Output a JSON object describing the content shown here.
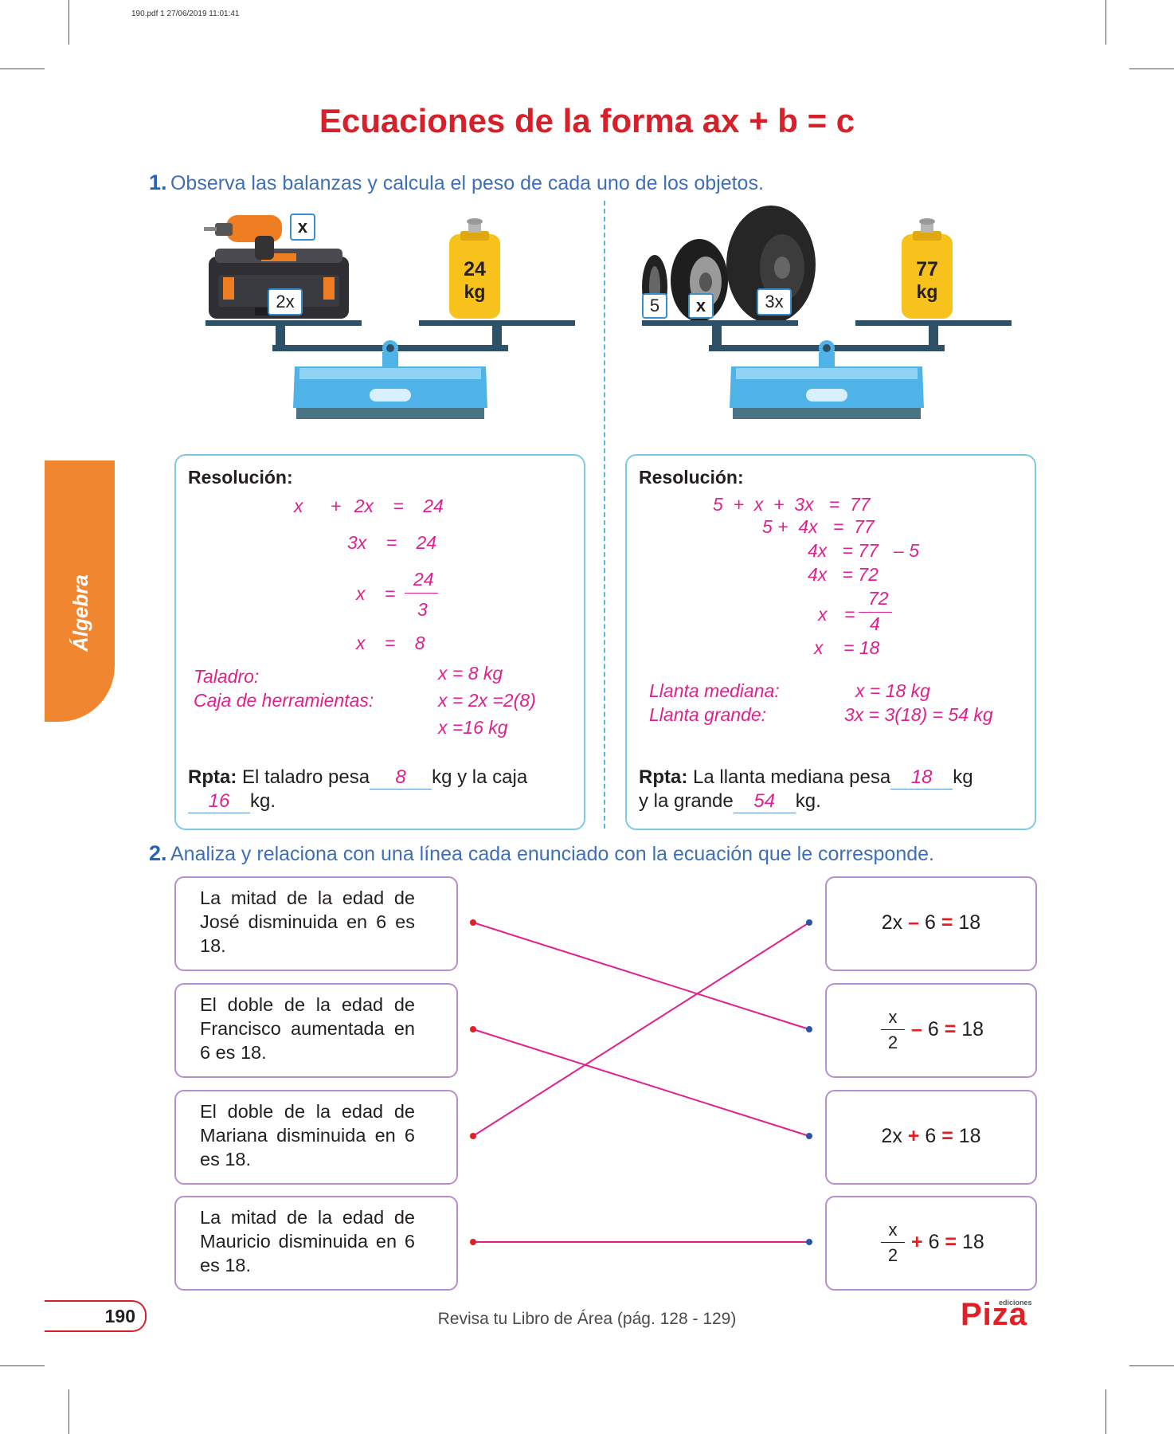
{
  "print_info": "190.pdf   1   27/06/2019   11:01:41",
  "title": "Ecuaciones de la forma ax + b = c",
  "section_tab": "Álgebra",
  "q1": {
    "number": "1.",
    "text": "Observa las balanzas y calcula el peso de cada uno de los objetos.",
    "scale1": {
      "label_x": "x",
      "label_2x": "2x",
      "weight_value": "24",
      "weight_unit": "kg"
    },
    "scale2": {
      "label_5": "5",
      "label_x": "x",
      "label_3x": "3x",
      "weight_value": "77",
      "weight_unit": "kg"
    },
    "box1": {
      "label": "Resolución:",
      "eq1": {
        "a": "x",
        "op": "+",
        "b": "2x",
        "eq": "=",
        "c": "24"
      },
      "eq2": {
        "a": "3x",
        "eq": "=",
        "c": "24"
      },
      "eq3": {
        "a": "x",
        "eq": "=",
        "num": "24",
        "den": "3"
      },
      "eq4": {
        "a": "x",
        "eq": "=",
        "c": "8"
      },
      "taladro_label": "Taladro:",
      "taladro_value": "x = 8 kg",
      "caja_label": "Caja de herramientas:",
      "caja_value1": "x = 2x =2(8)",
      "caja_value2": "x =16 kg",
      "rpta_label": "Rpta:",
      "rpta_text1": "El taladro pesa",
      "rpta_blank1": "8",
      "rpta_text2": "kg y la caja",
      "rpta_blank2": "16",
      "rpta_text3": "kg."
    },
    "box2": {
      "label": "Resolución:",
      "line1": "5  +  x  +  3x   =  77",
      "line2": "5 +  4x   =  77",
      "line3": "4x   = 77   – 5",
      "line4": "4x   = 72",
      "frac_x": "x",
      "frac_eq": "=",
      "frac_num": "72",
      "frac_den": "4",
      "line6": "x    = 18",
      "mediana_label": "Llanta mediana:",
      "mediana_value": "x = 18 kg",
      "grande_label": "Llanta grande:",
      "grande_value": "3x = 3(18) = 54 kg",
      "rpta_label": "Rpta:",
      "rpta_text1": "La llanta mediana pesa",
      "rpta_blank1": "18",
      "rpta_text2": "kg",
      "rpta_text3": "y la grande",
      "rpta_blank2": "54",
      "rpta_text4": "kg."
    }
  },
  "q2": {
    "number": "2.",
    "text": "Analiza y relaciona con una línea cada enunciado con la ecuación que le corresponde.",
    "statements": [
      "La mitad de la edad de José disminuida en 6 es 18.",
      "El doble de la edad de Francisco aumentada en 6 es 18.",
      "El doble de la edad de Mariana disminuida en 6 es 18.",
      "La mitad de la edad de Mauricio disminuida en 6 es 18."
    ],
    "equations": [
      {
        "lhs": "2x",
        "op": "–",
        "b": "6",
        "eq": "=",
        "rhs": "18"
      },
      {
        "num": "x",
        "den": "2",
        "op": "–",
        "b": "6",
        "eq": "=",
        "rhs": "18"
      },
      {
        "lhs": "2x",
        "op": "+",
        "b": "6",
        "eq": "=",
        "rhs": "18"
      },
      {
        "num": "x",
        "den": "2",
        "op": "+",
        "b": "6",
        "eq": "=",
        "rhs": "18"
      }
    ]
  },
  "page_number": "190",
  "footer": "Revisa tu Libro de Área (pág. 128 - 129)",
  "publisher_small": "ediciones",
  "publisher": "Piza",
  "colors": {
    "title_red": "#d6202a",
    "question_blue": "#3e6fb8",
    "answer_magenta": "#e0208d",
    "tab_orange": "#f18631",
    "box_cyan": "#7fc9e6",
    "scale_blue": "#4fb3e8"
  }
}
